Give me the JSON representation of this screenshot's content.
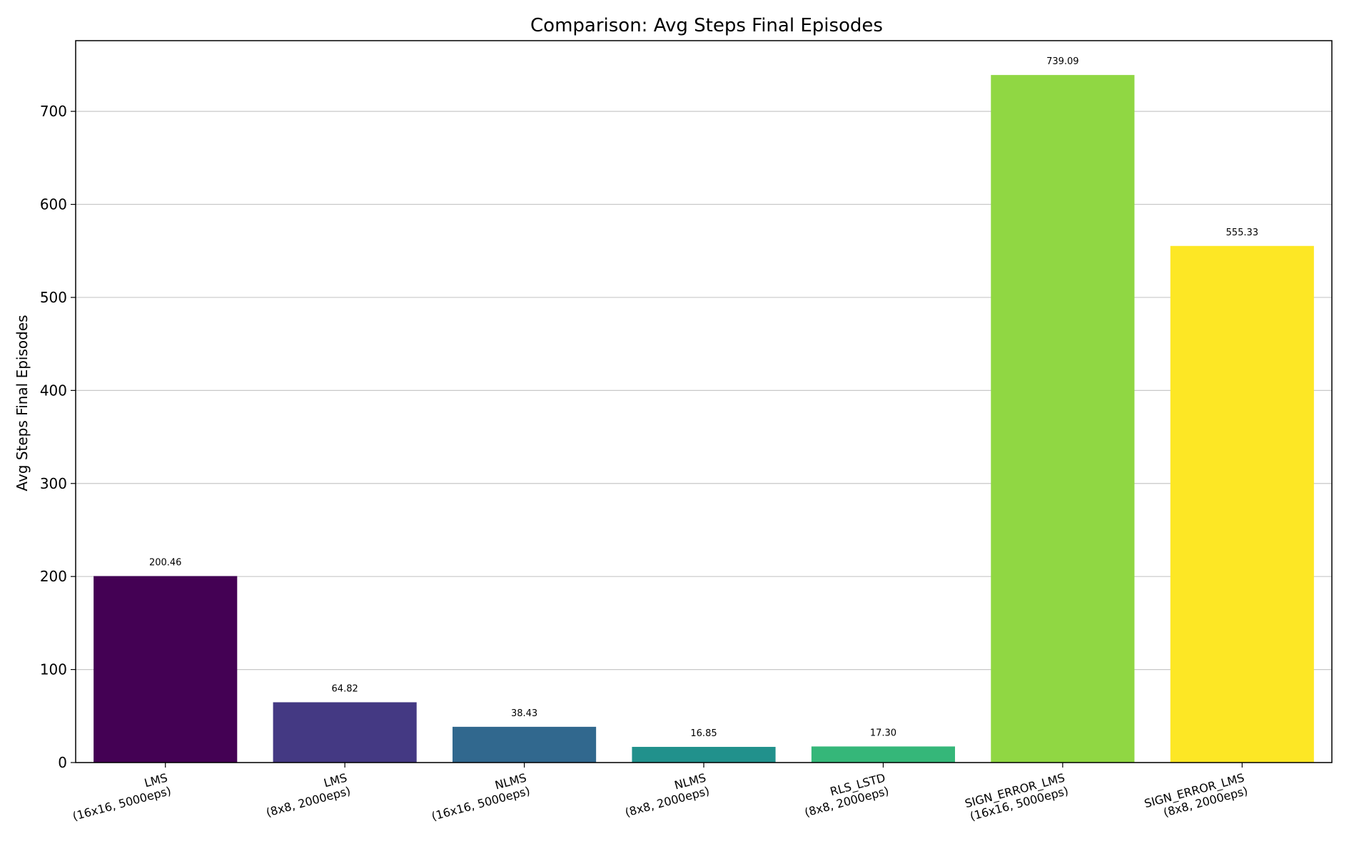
{
  "chart_data": {
    "type": "bar",
    "title": "Comparison: Avg Steps Final Episodes",
    "xlabel": "",
    "ylabel": "Avg Steps Final Episodes",
    "ylim": [
      0,
      776
    ],
    "yticks": [
      0,
      100,
      200,
      300,
      400,
      500,
      600,
      700
    ],
    "grid": "y",
    "categories": [
      [
        "LMS",
        "(16x16, 5000eps)"
      ],
      [
        "LMS",
        "(8x8, 2000eps)"
      ],
      [
        "NLMS",
        "(16x16, 5000eps)"
      ],
      [
        "NLMS",
        "(8x8, 2000eps)"
      ],
      [
        "RLS_LSTD",
        "(8x8, 2000eps)"
      ],
      [
        "SIGN_ERROR_LMS",
        "(16x16, 5000eps)"
      ],
      [
        "SIGN_ERROR_LMS",
        "(8x8, 2000eps)"
      ]
    ],
    "values": [
      200.46,
      64.82,
      38.43,
      16.85,
      17.3,
      739.09,
      555.33
    ],
    "value_labels": [
      "200.46",
      "64.82",
      "38.43",
      "16.85",
      "17.30",
      "739.09",
      "555.33"
    ],
    "colors": [
      "#440154",
      "#443983",
      "#31688e",
      "#21918c",
      "#35b779",
      "#90d743",
      "#fde725"
    ]
  }
}
